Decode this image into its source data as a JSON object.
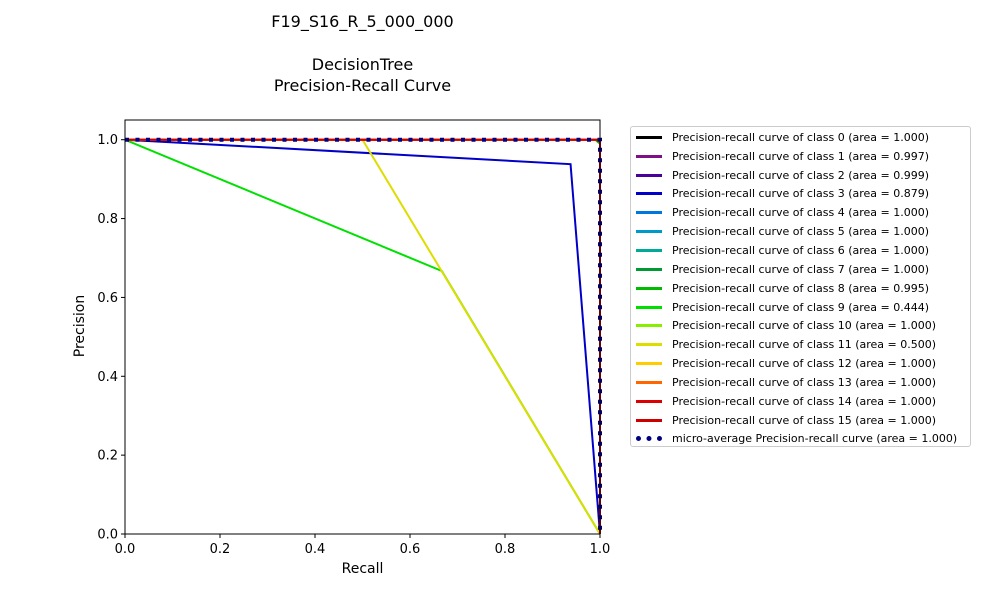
{
  "title_lines": [
    "F19_S16_R_5_000_000",
    "DecisionTree",
    "Precision-Recall Curve"
  ],
  "chart_data": {
    "type": "line",
    "title": "F19_S16_R_5_000_000 DecisionTree Precision-Recall Curve",
    "xlabel": "Recall",
    "ylabel": "Precision",
    "xlim": [
      0.0,
      1.0
    ],
    "ylim": [
      0.0,
      1.05
    ],
    "xticks": [
      "0.0",
      "0.2",
      "0.4",
      "0.6",
      "0.8",
      "1.0"
    ],
    "yticks": [
      "0.0",
      "0.2",
      "0.4",
      "0.6",
      "0.8",
      "1.0"
    ],
    "grid": false,
    "legend_position": "outside-right",
    "series": [
      {
        "name": "Precision-recall curve of class 0 (area = 1.000)",
        "color": "#000000",
        "style": "solid",
        "x": [
          0.0,
          1.0,
          1.0
        ],
        "y": [
          1.0,
          1.0,
          0.0
        ]
      },
      {
        "name": "Precision-recall curve of class 1 (area = 0.997)",
        "color": "#7f0f87",
        "style": "solid",
        "x": [
          0.0,
          0.995,
          1.0,
          1.0
        ],
        "y": [
          1.0,
          1.0,
          0.99,
          0.0
        ]
      },
      {
        "name": "Precision-recall curve of class 2 (area = 0.999)",
        "color": "#4a0099",
        "style": "solid",
        "x": [
          0.0,
          0.998,
          1.0,
          1.0
        ],
        "y": [
          1.0,
          1.0,
          0.998,
          0.0
        ]
      },
      {
        "name": "Precision-recall curve of class 3 (area = 0.879)",
        "color": "#0000c8",
        "style": "solid",
        "x": [
          0.0,
          0.938,
          1.0,
          1.0
        ],
        "y": [
          1.0,
          0.938,
          0.0,
          0.0
        ]
      },
      {
        "name": "Precision-recall curve of class 4 (area = 1.000)",
        "color": "#0077dd",
        "style": "solid",
        "x": [
          0.0,
          1.0,
          1.0
        ],
        "y": [
          1.0,
          1.0,
          0.0
        ]
      },
      {
        "name": "Precision-recall curve of class 5 (area = 1.000)",
        "color": "#0099cc",
        "style": "solid",
        "x": [
          0.0,
          1.0,
          1.0
        ],
        "y": [
          1.0,
          1.0,
          0.0
        ]
      },
      {
        "name": "Precision-recall curve of class 6 (area = 1.000)",
        "color": "#00aa99",
        "style": "solid",
        "x": [
          0.0,
          1.0,
          1.0
        ],
        "y": [
          1.0,
          1.0,
          0.0
        ]
      },
      {
        "name": "Precision-recall curve of class 7 (area = 1.000)",
        "color": "#009933",
        "style": "solid",
        "x": [
          0.0,
          1.0,
          1.0
        ],
        "y": [
          1.0,
          1.0,
          0.0
        ]
      },
      {
        "name": "Precision-recall curve of class 8 (area = 0.995)",
        "color": "#00bb00",
        "style": "solid",
        "x": [
          0.0,
          0.99,
          1.0,
          1.0
        ],
        "y": [
          1.0,
          1.0,
          0.99,
          0.0
        ]
      },
      {
        "name": "Precision-recall curve of class 9 (area = 0.444)",
        "color": "#00e000",
        "style": "solid",
        "x": [
          0.0,
          0.667,
          1.0
        ],
        "y": [
          1.0,
          0.667,
          0.0
        ]
      },
      {
        "name": "Precision-recall curve of class 10 (area = 1.000)",
        "color": "#88ee00",
        "style": "solid",
        "x": [
          0.0,
          1.0,
          1.0
        ],
        "y": [
          1.0,
          1.0,
          0.0
        ]
      },
      {
        "name": "Precision-recall curve of class 11 (area = 0.500)",
        "color": "#dddd00",
        "style": "solid",
        "x": [
          0.0,
          0.5,
          1.0
        ],
        "y": [
          1.0,
          1.0,
          0.0
        ]
      },
      {
        "name": "Precision-recall curve of class 12 (area = 1.000)",
        "color": "#ffcc00",
        "style": "solid",
        "x": [
          0.0,
          1.0,
          1.0
        ],
        "y": [
          1.0,
          1.0,
          0.0
        ]
      },
      {
        "name": "Precision-recall curve of class 13 (area = 1.000)",
        "color": "#ff6600",
        "style": "solid",
        "x": [
          0.0,
          1.0,
          1.0
        ],
        "y": [
          1.0,
          1.0,
          0.0
        ]
      },
      {
        "name": "Precision-recall curve of class 14 (area = 1.000)",
        "color": "#dd0000",
        "style": "solid",
        "x": [
          0.0,
          1.0,
          1.0
        ],
        "y": [
          1.0,
          1.0,
          0.0
        ]
      },
      {
        "name": "Precision-recall curve of class 15 (area = 1.000)",
        "color": "#cc0000",
        "style": "solid",
        "x": [
          0.0,
          1.0,
          1.0
        ],
        "y": [
          1.0,
          1.0,
          0.0
        ]
      },
      {
        "name": "micro-average Precision-recall curve (area = 1.000)",
        "color": "#000080",
        "style": "dotted",
        "x": [
          0.0,
          1.0,
          1.0
        ],
        "y": [
          1.0,
          1.0,
          0.0
        ]
      }
    ]
  }
}
